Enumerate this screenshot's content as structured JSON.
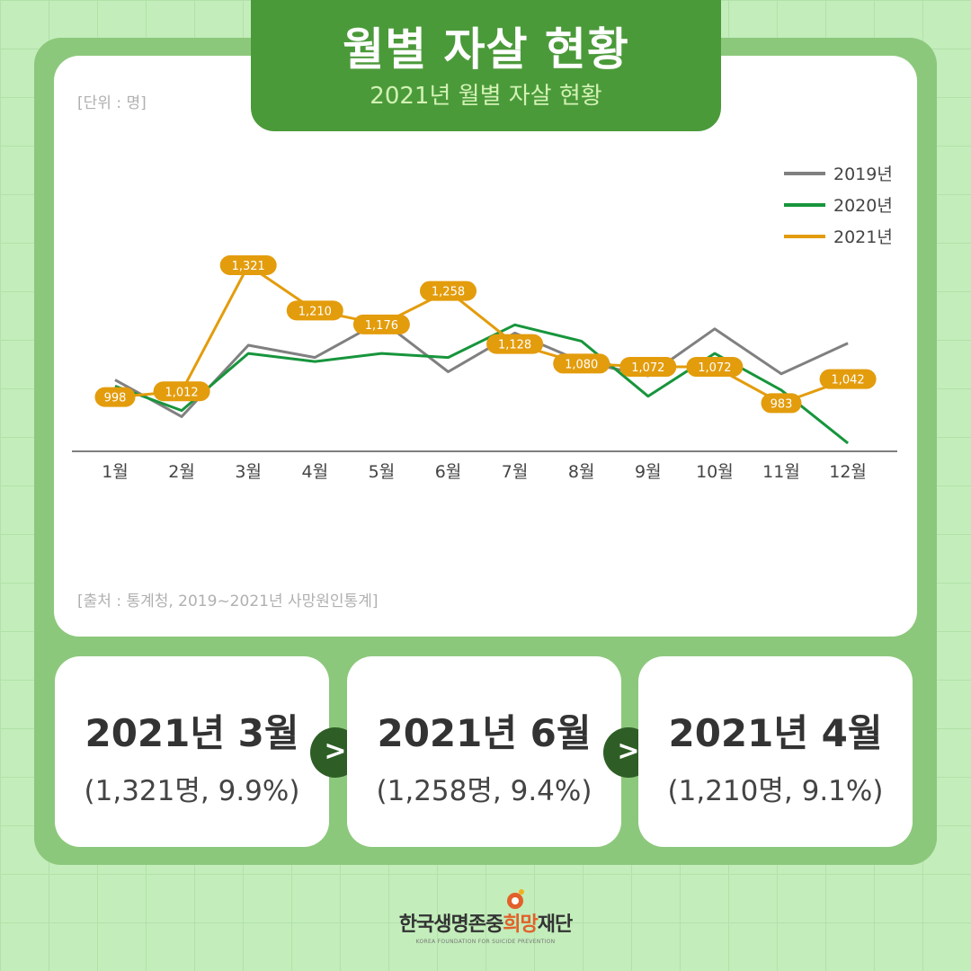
{
  "header": {
    "title": "월별 자살 현황",
    "subtitle": "2021년 월별 자살 현황"
  },
  "unit_label": "[단위 : 명]",
  "source_label": "[출처 : 통계청, 2019~2021년 사망원인통계]",
  "chart_data": {
    "type": "line",
    "categories": [
      "1월",
      "2월",
      "3월",
      "4월",
      "5월",
      "6월",
      "7월",
      "8월",
      "9월",
      "10월",
      "11월",
      "12월"
    ],
    "series": [
      {
        "name": "2019년",
        "color": "#808080",
        "values": [
          1040,
          950,
          1125,
          1095,
          1185,
          1060,
          1155,
          1085,
          1050,
          1165,
          1055,
          1130
        ],
        "labeled": false
      },
      {
        "name": "2020년",
        "color": "#17953c",
        "values": [
          1025,
          965,
          1105,
          1085,
          1105,
          1095,
          1175,
          1135,
          1000,
          1105,
          1015,
          885
        ],
        "labeled": false
      },
      {
        "name": "2021년",
        "color": "#e39c0c",
        "values": [
          998,
          1012,
          1321,
          1210,
          1176,
          1258,
          1128,
          1080,
          1072,
          1072,
          983,
          1042
        ],
        "labeled": true
      }
    ],
    "data_labels": [
      "998",
      "1,012",
      "1,321",
      "1,210",
      "1,176",
      "1,258",
      "1,128",
      "1,080",
      "1,072",
      "1,072",
      "983",
      "1,042"
    ],
    "ylim": [
      865,
      1500
    ],
    "grid": false,
    "legend": "top-right",
    "title": "",
    "xlabel": "",
    "ylabel": ""
  },
  "highlights": [
    {
      "title": "2021년 3월",
      "detail": "(1,321명, 9.9%)"
    },
    {
      "title": "2021년 6월",
      "detail": "(1,258명, 9.4%)"
    },
    {
      "title": "2021년 4월",
      "detail": "(1,210명, 9.1%)"
    }
  ],
  "arrow_glyph": ">",
  "logo": {
    "name_part1": "한국생명존중",
    "name_part2": "희망",
    "name_part3": "재단",
    "english": "KOREA FOUNDATION FOR SUICIDE PREVENTION",
    "accent_color": "#e2602a"
  }
}
